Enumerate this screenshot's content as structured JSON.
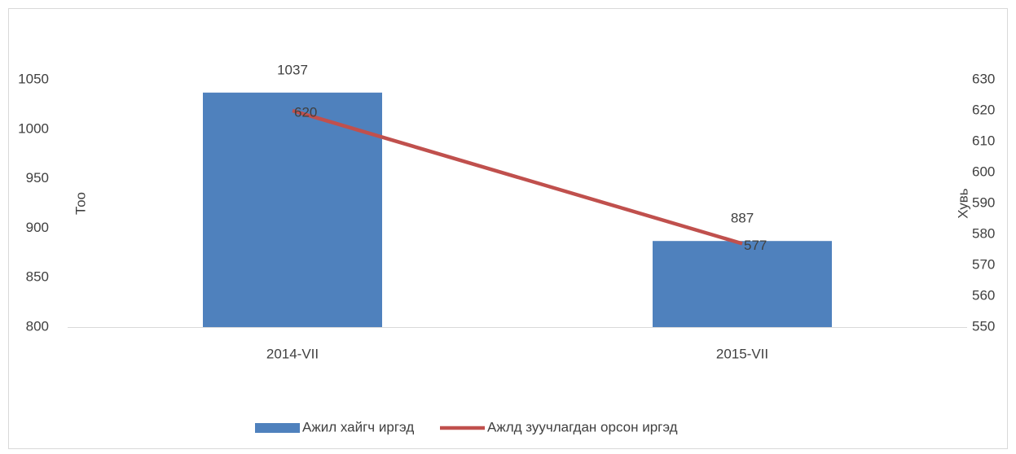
{
  "chart_data": {
    "type": "bar_line",
    "categories": [
      "2014-VII",
      "2015-VII"
    ],
    "series": [
      {
        "name": "Ажил хайгч иргэд",
        "type": "bar",
        "color": "#4f81bd",
        "values": [
          1037,
          887
        ]
      },
      {
        "name": "Ажлд зуучлагдан орсон иргэд",
        "type": "line",
        "color": "#c0504d",
        "values": [
          620,
          577
        ],
        "axis": "y2"
      }
    ],
    "ylabel": "Тоо",
    "y2label": "Хувь",
    "ylim": [
      800,
      1050
    ],
    "yticks": [
      800,
      850,
      900,
      950,
      1000,
      1050
    ],
    "y2lim": [
      550,
      630
    ],
    "y2ticks": [
      550,
      560,
      570,
      580,
      590,
      600,
      610,
      620,
      630
    ],
    "grid": false,
    "legend": "bottom"
  }
}
